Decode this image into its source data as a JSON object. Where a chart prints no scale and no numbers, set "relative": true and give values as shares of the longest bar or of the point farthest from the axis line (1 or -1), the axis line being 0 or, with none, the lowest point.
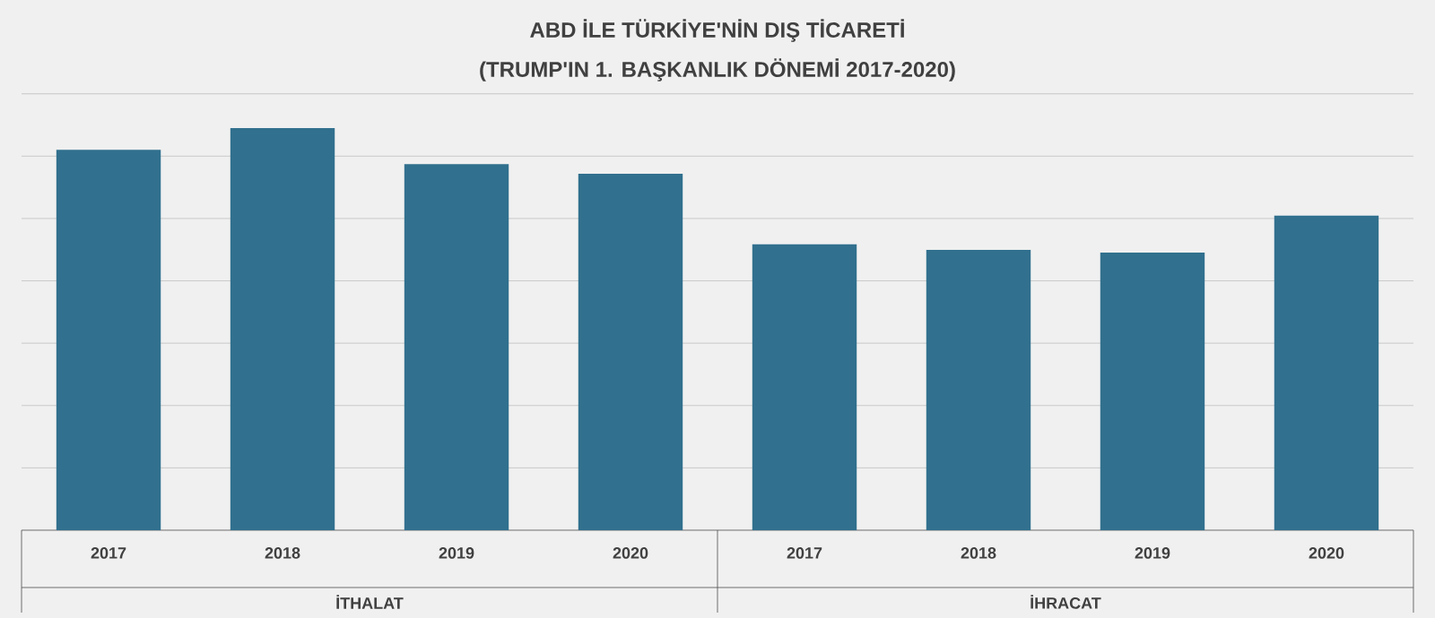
{
  "chart_data": {
    "type": "bar",
    "title": "ABD İLE TÜRKİYE'NİN DIŞ TİCARETİ",
    "subtitle": "(TRUMP'IN 1. BAŞKANLIK DÖNEMİ 2017-2020)",
    "categories": [
      "2017",
      "2018",
      "2019",
      "2020",
      "2017",
      "2018",
      "2019",
      "2020"
    ],
    "values": [
      0.946,
      1,
      0.91,
      0.886,
      0.711,
      0.697,
      0.69,
      0.782
    ],
    "color": "#31708e",
    "relative": true,
    "grid": "y",
    "annotations": [
      "İTHALAT",
      "İHRACAT"
    ]
  }
}
